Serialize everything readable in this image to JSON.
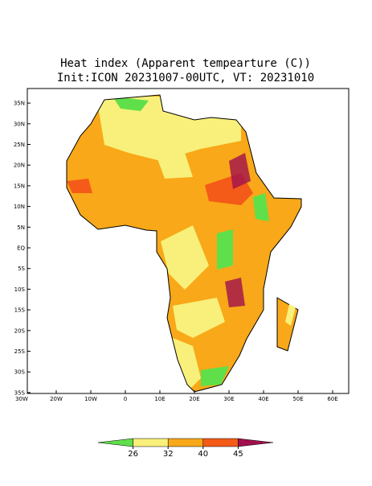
{
  "title": [
    "Heat index (Apparent tempearture (C))",
    "Init:ICON 20231007-00UTC, VT: 20231010"
  ],
  "map": {
    "lat_ticks": [
      {
        "value": 35,
        "label": "35N"
      },
      {
        "value": 30,
        "label": "30N"
      },
      {
        "value": 25,
        "label": "25N"
      },
      {
        "value": 20,
        "label": "20N"
      },
      {
        "value": 15,
        "label": "15N"
      },
      {
        "value": 10,
        "label": "10N"
      },
      {
        "value": 5,
        "label": "5N"
      },
      {
        "value": 0,
        "label": "EQ"
      },
      {
        "value": -5,
        "label": "5S"
      },
      {
        "value": -10,
        "label": "10S"
      },
      {
        "value": -15,
        "label": "15S"
      },
      {
        "value": -20,
        "label": "20S"
      },
      {
        "value": -25,
        "label": "25S"
      },
      {
        "value": -30,
        "label": "30S"
      },
      {
        "value": -35,
        "label": "35S"
      }
    ],
    "lon_ticks": [
      {
        "value": -30,
        "label": "30W"
      },
      {
        "value": -20,
        "label": "20W"
      },
      {
        "value": -10,
        "label": "10W"
      },
      0,
      {
        "value": 10,
        "label": "10E"
      },
      {
        "value": 20,
        "label": "20E"
      },
      {
        "value": 30,
        "label": "30E"
      },
      {
        "value": 40,
        "label": "40E"
      },
      {
        "value": 50,
        "label": "50E"
      },
      {
        "value": 60,
        "label": "60E"
      }
    ]
  },
  "colorbar": {
    "colors": [
      "#5fe04a",
      "#f8f07a",
      "#f8a818",
      "#f45a18",
      "#a0104e"
    ],
    "ticks": [
      26,
      32,
      40,
      45
    ]
  }
}
